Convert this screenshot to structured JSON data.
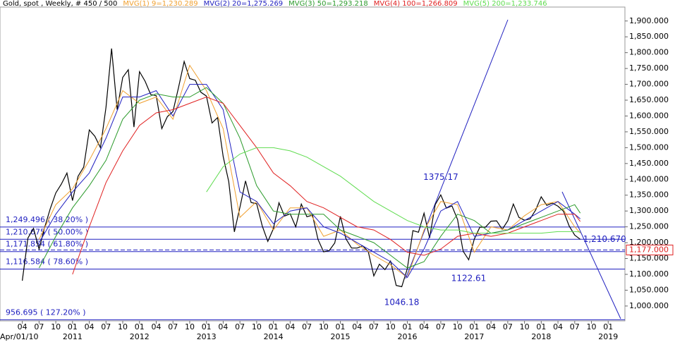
{
  "chart_data": {
    "type": "line",
    "xlim": [
      "2009-12",
      "2019-04"
    ],
    "ylim": [
      953,
      1944
    ],
    "start_label": "Apr/01/10",
    "xticks": [
      {
        "value": "2010-04",
        "label": "04"
      },
      {
        "value": "2010-07",
        "label": "07"
      },
      {
        "value": "2010-10",
        "label": "10"
      },
      {
        "value": "2011-01",
        "label": "01"
      },
      {
        "value": "2011-04",
        "label": "04"
      },
      {
        "value": "2011-07",
        "label": "07"
      },
      {
        "value": "2011-10",
        "label": "10"
      },
      {
        "value": "2012-01",
        "label": "01"
      },
      {
        "value": "2012-04",
        "label": "04"
      },
      {
        "value": "2012-07",
        "label": "07"
      },
      {
        "value": "2012-10",
        "label": "10"
      },
      {
        "value": "2013-01",
        "label": "01"
      },
      {
        "value": "2013-04",
        "label": "04"
      },
      {
        "value": "2013-07",
        "label": "07"
      },
      {
        "value": "2013-10",
        "label": "10"
      },
      {
        "value": "2014-01",
        "label": "01"
      },
      {
        "value": "2014-04",
        "label": "04"
      },
      {
        "value": "2014-07",
        "label": "07"
      },
      {
        "value": "2014-10",
        "label": "10"
      },
      {
        "value": "2015-01",
        "label": "01"
      },
      {
        "value": "2015-04",
        "label": "04"
      },
      {
        "value": "2015-07",
        "label": "07"
      },
      {
        "value": "2015-10",
        "label": "10"
      },
      {
        "value": "2016-01",
        "label": "01"
      },
      {
        "value": "2016-04",
        "label": "04"
      },
      {
        "value": "2016-07",
        "label": "07"
      },
      {
        "value": "2016-10",
        "label": "10"
      },
      {
        "value": "2017-01",
        "label": "01"
      },
      {
        "value": "2017-04",
        "label": "04"
      },
      {
        "value": "2017-07",
        "label": "07"
      },
      {
        "value": "2017-10",
        "label": "10"
      },
      {
        "value": "2018-01",
        "label": "01"
      },
      {
        "value": "2018-04",
        "label": "04"
      },
      {
        "value": "2018-07",
        "label": "07"
      },
      {
        "value": "2018-10",
        "label": "10"
      },
      {
        "value": "2019-01",
        "label": "01"
      }
    ],
    "year_ticks": [
      {
        "value": "2011-01",
        "label": "2011"
      },
      {
        "value": "2012-01",
        "label": "2012"
      },
      {
        "value": "2013-01",
        "label": "2013"
      },
      {
        "value": "2014-01",
        "label": "2014"
      },
      {
        "value": "2015-01",
        "label": "2015"
      },
      {
        "value": "2016-01",
        "label": "2016"
      },
      {
        "value": "2017-01",
        "label": "2017"
      },
      {
        "value": "2018-01",
        "label": "2018"
      },
      {
        "value": "2019-01",
        "label": "2019"
      }
    ],
    "yticks": [
      {
        "value": 1000,
        "label": "1,000.000"
      },
      {
        "value": 1050,
        "label": "1,050.000"
      },
      {
        "value": 1100,
        "label": "1,100.000"
      },
      {
        "value": 1150,
        "label": "1,150.000"
      },
      {
        "value": 1200,
        "label": "1,200.000"
      },
      {
        "value": 1250,
        "label": "1,250.000"
      },
      {
        "value": 1300,
        "label": "1,300.000"
      },
      {
        "value": 1350,
        "label": "1,350.000"
      },
      {
        "value": 1400,
        "label": "1,400.000"
      },
      {
        "value": 1450,
        "label": "1,450.000"
      },
      {
        "value": 1500,
        "label": "1,500.000"
      },
      {
        "value": 1550,
        "label": "1,550.000"
      },
      {
        "value": 1600,
        "label": "1,600.000"
      },
      {
        "value": 1650,
        "label": "1,650.000"
      },
      {
        "value": 1700,
        "label": "1,700.000"
      },
      {
        "value": 1750,
        "label": "1,750.000"
      },
      {
        "value": 1800,
        "label": "1,800.000"
      },
      {
        "value": 1850,
        "label": "1,850.000"
      },
      {
        "value": 1900,
        "label": "1,900.000"
      }
    ],
    "series": [
      {
        "name": "Gold, spot , Weekly, # 450 / 500",
        "color": "#000000",
        "x": [
          "2010-04",
          "2010-05",
          "2010-06",
          "2010-07",
          "2010-08",
          "2010-09",
          "2010-10",
          "2010-11",
          "2010-12",
          "2011-01",
          "2011-02",
          "2011-03",
          "2011-04",
          "2011-05",
          "2011-06",
          "2011-07",
          "2011-08",
          "2011-09",
          "2011-10",
          "2011-11",
          "2011-12",
          "2012-01",
          "2012-02",
          "2012-03",
          "2012-04",
          "2012-05",
          "2012-06",
          "2012-07",
          "2012-08",
          "2012-09",
          "2012-10",
          "2012-11",
          "2012-12",
          "2013-01",
          "2013-02",
          "2013-03",
          "2013-04",
          "2013-05",
          "2013-06",
          "2013-07",
          "2013-08",
          "2013-09",
          "2013-10",
          "2013-11",
          "2013-12",
          "2014-01",
          "2014-02",
          "2014-03",
          "2014-04",
          "2014-05",
          "2014-06",
          "2014-07",
          "2014-08",
          "2014-09",
          "2014-10",
          "2014-11",
          "2014-12",
          "2015-01",
          "2015-02",
          "2015-03",
          "2015-04",
          "2015-05",
          "2015-06",
          "2015-07",
          "2015-08",
          "2015-09",
          "2015-10",
          "2015-11",
          "2015-12",
          "2016-01",
          "2016-02",
          "2016-03",
          "2016-04",
          "2016-05",
          "2016-06",
          "2016-07",
          "2016-08",
          "2016-09",
          "2016-10",
          "2016-11",
          "2016-12",
          "2017-01",
          "2017-02",
          "2017-03",
          "2017-04",
          "2017-05",
          "2017-06",
          "2017-07",
          "2017-08",
          "2017-09",
          "2017-10",
          "2017-11",
          "2017-12",
          "2018-01",
          "2018-02",
          "2018-03",
          "2018-04",
          "2018-05",
          "2018-06",
          "2018-07",
          "2018-08"
        ],
        "values": [
          1080,
          1215,
          1245,
          1180,
          1248,
          1307,
          1357,
          1385,
          1420,
          1333,
          1410,
          1439,
          1556,
          1536,
          1500,
          1628,
          1813,
          1620,
          1722,
          1746,
          1565,
          1740,
          1710,
          1668,
          1664,
          1560,
          1598,
          1614,
          1690,
          1772,
          1718,
          1713,
          1675,
          1663,
          1578,
          1595,
          1472,
          1393,
          1234,
          1312,
          1395,
          1327,
          1323,
          1253,
          1204,
          1244,
          1326,
          1284,
          1291,
          1250,
          1322,
          1282,
          1287,
          1210,
          1171,
          1175,
          1199,
          1283,
          1212,
          1183,
          1183,
          1190,
          1172,
          1095,
          1132,
          1115,
          1142,
          1065,
          1061,
          1118,
          1238,
          1233,
          1293,
          1215,
          1320,
          1351,
          1309,
          1316,
          1273,
          1173,
          1146,
          1211,
          1249,
          1249,
          1268,
          1269,
          1242,
          1269,
          1322,
          1280,
          1271,
          1275,
          1303,
          1345,
          1318,
          1325,
          1315,
          1299,
          1253,
          1224,
          1210.67
        ]
      },
      {
        "name": "MVG(1) 9=1,230.289",
        "color": "#f0a030",
        "x": [
          "2010-07",
          "2010-10",
          "2011-01",
          "2011-04",
          "2011-07",
          "2011-10",
          "2012-01",
          "2012-04",
          "2012-07",
          "2012-10",
          "2013-01",
          "2013-04",
          "2013-07",
          "2013-10",
          "2014-01",
          "2014-04",
          "2014-07",
          "2014-10",
          "2015-01",
          "2015-04",
          "2015-07",
          "2015-10",
          "2016-01",
          "2016-04",
          "2016-07",
          "2016-10",
          "2017-01",
          "2017-04",
          "2017-07",
          "2017-10",
          "2018-01",
          "2018-04",
          "2018-07",
          "2018-08"
        ],
        "values": [
          1210,
          1320,
          1370,
          1460,
          1560,
          1680,
          1640,
          1660,
          1590,
          1760,
          1680,
          1560,
          1280,
          1330,
          1240,
          1310,
          1310,
          1220,
          1240,
          1195,
          1160,
          1130,
          1090,
          1240,
          1330,
          1320,
          1170,
          1250,
          1240,
          1285,
          1320,
          1330,
          1250,
          1230.289
        ]
      },
      {
        "name": "MVG(2) 20=1,275.269",
        "color": "#2020c0",
        "x": [
          "2010-07",
          "2010-10",
          "2011-01",
          "2011-04",
          "2011-07",
          "2011-10",
          "2012-01",
          "2012-04",
          "2012-07",
          "2012-10",
          "2013-01",
          "2013-04",
          "2013-07",
          "2013-10",
          "2014-01",
          "2014-04",
          "2014-07",
          "2014-10",
          "2015-01",
          "2015-04",
          "2015-07",
          "2015-10",
          "2016-01",
          "2016-04",
          "2016-07",
          "2016-10",
          "2017-01",
          "2017-04",
          "2017-07",
          "2017-10",
          "2018-01",
          "2018-04",
          "2018-07",
          "2018-08"
        ],
        "values": [
          1200,
          1290,
          1360,
          1420,
          1530,
          1660,
          1660,
          1680,
          1600,
          1700,
          1700,
          1620,
          1360,
          1330,
          1260,
          1300,
          1310,
          1250,
          1230,
          1200,
          1170,
          1140,
          1090,
          1180,
          1300,
          1330,
          1220,
          1230,
          1240,
          1270,
          1300,
          1330,
          1290,
          1275.269
        ]
      },
      {
        "name": "MVG(3) 50=1,293.218",
        "color": "#2a9a2a",
        "x": [
          "2010-07",
          "2010-10",
          "2011-01",
          "2011-04",
          "2011-07",
          "2011-10",
          "2012-01",
          "2012-04",
          "2012-07",
          "2012-10",
          "2013-01",
          "2013-04",
          "2013-07",
          "2013-10",
          "2014-01",
          "2014-04",
          "2014-07",
          "2014-10",
          "2015-01",
          "2015-04",
          "2015-07",
          "2015-10",
          "2016-01",
          "2016-04",
          "2016-07",
          "2016-10",
          "2017-01",
          "2017-04",
          "2017-07",
          "2017-10",
          "2018-01",
          "2018-04",
          "2018-07",
          "2018-08"
        ],
        "values": [
          1120,
          1220,
          1310,
          1380,
          1460,
          1590,
          1650,
          1670,
          1660,
          1660,
          1690,
          1640,
          1530,
          1380,
          1300,
          1290,
          1290,
          1290,
          1240,
          1220,
          1200,
          1160,
          1120,
          1140,
          1220,
          1290,
          1270,
          1230,
          1240,
          1260,
          1280,
          1300,
          1320,
          1293.218
        ]
      },
      {
        "name": "MVG(4) 100=1,266.809",
        "color": "#e02020",
        "x": [
          "2011-01",
          "2011-04",
          "2011-07",
          "2011-10",
          "2012-01",
          "2012-04",
          "2012-07",
          "2012-10",
          "2013-01",
          "2013-04",
          "2013-07",
          "2013-10",
          "2014-01",
          "2014-04",
          "2014-07",
          "2014-10",
          "2015-01",
          "2015-04",
          "2015-07",
          "2015-10",
          "2016-01",
          "2016-04",
          "2016-07",
          "2016-10",
          "2017-01",
          "2017-04",
          "2017-07",
          "2017-10",
          "2018-01",
          "2018-04",
          "2018-07",
          "2018-08"
        ],
        "values": [
          1100,
          1250,
          1390,
          1490,
          1570,
          1610,
          1620,
          1640,
          1660,
          1640,
          1570,
          1500,
          1420,
          1380,
          1330,
          1310,
          1280,
          1250,
          1240,
          1210,
          1170,
          1160,
          1180,
          1220,
          1230,
          1220,
          1230,
          1250,
          1270,
          1290,
          1290,
          1266.809
        ]
      },
      {
        "name": "MVG(5) 200=1,233.746",
        "color": "#5fdc4f",
        "x": [
          "2013-01",
          "2013-04",
          "2013-07",
          "2013-10",
          "2014-01",
          "2014-04",
          "2014-07",
          "2014-10",
          "2015-01",
          "2015-04",
          "2015-07",
          "2015-10",
          "2016-01",
          "2016-04",
          "2016-07",
          "2016-10",
          "2017-01",
          "2017-04",
          "2017-07",
          "2017-10",
          "2018-01",
          "2018-04",
          "2018-07",
          "2018-08"
        ],
        "values": [
          1360,
          1440,
          1480,
          1500,
          1500,
          1490,
          1470,
          1440,
          1410,
          1370,
          1330,
          1300,
          1270,
          1250,
          1240,
          1240,
          1230,
          1230,
          1230,
          1230,
          1230,
          1235,
          1235,
          1233.746
        ]
      }
    ],
    "fib_levels": [
      {
        "value": 1249.496,
        "label": "1,249.496  ( 38.20% )"
      },
      {
        "value": 1210.675,
        "label": "1,210.675  ( 50.00% )"
      },
      {
        "value": 1171.854,
        "label": "1,171.854  ( 61.80% )"
      },
      {
        "value": 1116.584,
        "label": "1,116.584  ( 78.60% )"
      },
      {
        "value": 956.695,
        "label": "956.695  ( 127.20% )"
      }
    ],
    "fib_color": "#2020c0",
    "annotations": [
      {
        "x": "2016-07",
        "y": 1375.17,
        "text": "1375.17"
      },
      {
        "x": "2016-12",
        "y": 1122.61,
        "text": "1122.61"
      },
      {
        "x": "2015-12",
        "y": 1046.18,
        "text": "1046.18"
      },
      {
        "x": "2018-08",
        "y": 1210.67,
        "text": "1,210.670"
      }
    ],
    "current_price": {
      "value": 1177,
      "label": "1,177.000"
    }
  }
}
